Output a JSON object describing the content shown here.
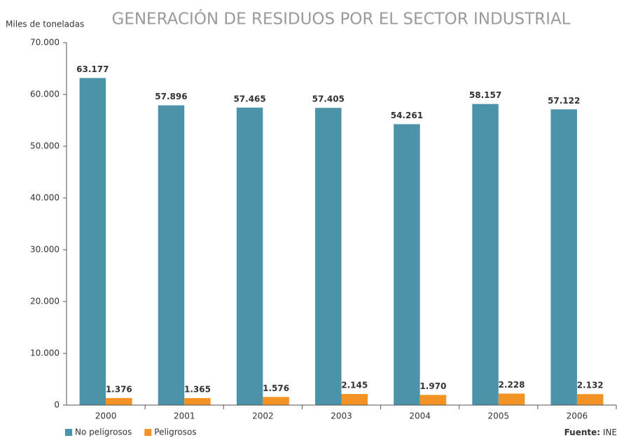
{
  "chart_data": {
    "type": "bar",
    "title": "GENERACIÓN DE RESIDUOS POR EL SECTOR INDUSTRIAL",
    "y_label": "Miles de toneladas",
    "categories": [
      "2000",
      "2001",
      "2002",
      "2003",
      "2004",
      "2005",
      "2006"
    ],
    "series": [
      {
        "name": "No peligrosos",
        "color": "#4a93a8",
        "values": [
          63177,
          57896,
          57465,
          57405,
          54261,
          58157,
          57122
        ],
        "value_labels": [
          "63.177",
          "57.896",
          "57.465",
          "57.405",
          "54.261",
          "58.157",
          "57.122"
        ]
      },
      {
        "name": "Peligrosos",
        "color": "#f39325",
        "values": [
          1376,
          1365,
          1576,
          2145,
          1970,
          2228,
          2132
        ],
        "value_labels": [
          "1.376",
          "1.365",
          "1.576",
          "2.145",
          "1.970",
          "2.228",
          "2.132"
        ]
      }
    ],
    "ylim": [
      0,
      70000
    ],
    "yticks": [
      {
        "value": 0,
        "label": "0"
      },
      {
        "value": 10000,
        "label": "10.000"
      },
      {
        "value": 20000,
        "label": "20.000"
      },
      {
        "value": 30000,
        "label": "30.000"
      },
      {
        "value": 40000,
        "label": "40.000"
      },
      {
        "value": 50000,
        "label": "50.000"
      },
      {
        "value": 60000,
        "label": "60.000"
      },
      {
        "value": 70000,
        "label": "70.000"
      }
    ],
    "grid": false,
    "legend": "bottom-left",
    "source": {
      "label": "Fuente:",
      "text": "INE"
    }
  }
}
